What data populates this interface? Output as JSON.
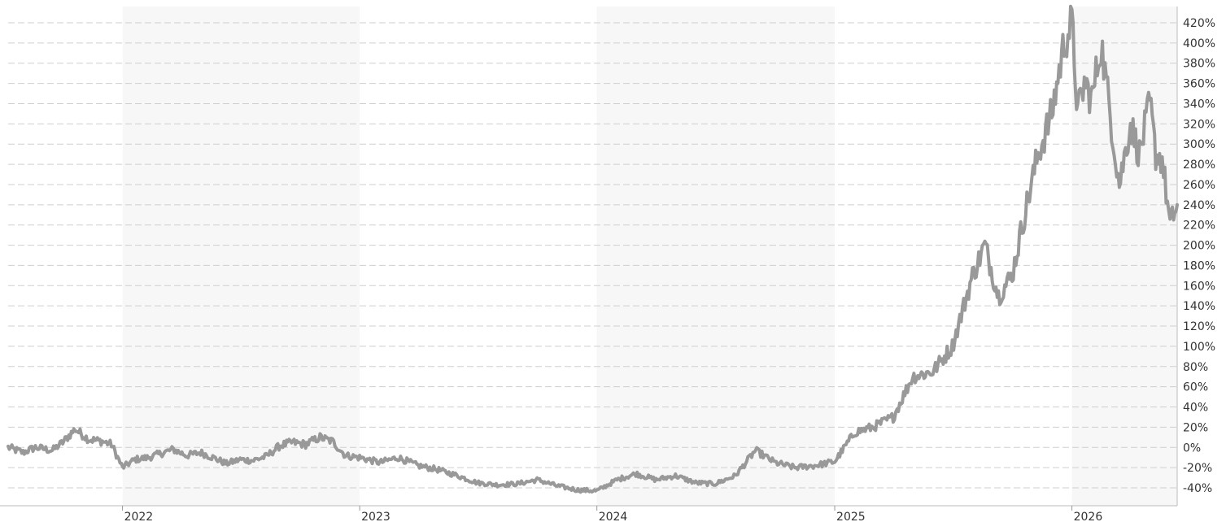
{
  "chart_data": {
    "type": "line",
    "title": "",
    "xlabel": "",
    "ylabel": "",
    "x_tick_labels": [
      "2022",
      "2023",
      "2024",
      "2025",
      "2026"
    ],
    "y_tick_labels": [
      "-40%",
      "-20%",
      "0%",
      "20%",
      "40%",
      "60%",
      "80%",
      "100%",
      "120%",
      "140%",
      "160%",
      "180%",
      "200%",
      "220%",
      "240%",
      "260%",
      "280%",
      "300%",
      "320%",
      "340%",
      "360%",
      "380%",
      "400%",
      "420%"
    ],
    "ylim": [
      -40,
      420
    ],
    "xlim": [
      "2021-07-09",
      "2026-06-12"
    ],
    "grid": true,
    "legend": "none",
    "line_color": "#999999",
    "series": [
      {
        "values": [
          [
            "2021-07-09",
            0
          ],
          [
            "2021-08-01",
            -5
          ],
          [
            "2021-08-20",
            0
          ],
          [
            "2021-09-15",
            -3
          ],
          [
            "2021-10-01",
            5
          ],
          [
            "2021-10-20",
            18
          ],
          [
            "2021-11-10",
            8
          ],
          [
            "2021-12-01",
            6
          ],
          [
            "2021-12-15",
            3
          ],
          [
            "2022-01-01",
            -20
          ],
          [
            "2022-01-20",
            -12
          ],
          [
            "2022-02-10",
            -10
          ],
          [
            "2022-03-01",
            -6
          ],
          [
            "2022-03-20",
            -2
          ],
          [
            "2022-04-10",
            -8
          ],
          [
            "2022-05-01",
            -5
          ],
          [
            "2022-05-20",
            -10
          ],
          [
            "2022-06-10",
            -16
          ],
          [
            "2022-07-01",
            -12
          ],
          [
            "2022-07-20",
            -13
          ],
          [
            "2022-08-10",
            -9
          ],
          [
            "2022-09-01",
            2
          ],
          [
            "2022-09-20",
            5
          ],
          [
            "2022-10-10",
            3
          ],
          [
            "2022-11-01",
            10
          ],
          [
            "2022-11-20",
            6
          ],
          [
            "2022-12-10",
            -8
          ],
          [
            "2023-01-01",
            -10
          ],
          [
            "2023-02-01",
            -15
          ],
          [
            "2023-03-01",
            -10
          ],
          [
            "2023-04-01",
            -18
          ],
          [
            "2023-05-01",
            -22
          ],
          [
            "2023-06-01",
            -28
          ],
          [
            "2023-07-01",
            -35
          ],
          [
            "2023-08-01",
            -37
          ],
          [
            "2023-09-01",
            -36
          ],
          [
            "2023-10-01",
            -32
          ],
          [
            "2023-11-01",
            -38
          ],
          [
            "2023-12-01",
            -42
          ],
          [
            "2024-01-01",
            -43
          ],
          [
            "2024-02-01",
            -32
          ],
          [
            "2024-03-01",
            -26
          ],
          [
            "2024-04-01",
            -32
          ],
          [
            "2024-05-01",
            -28
          ],
          [
            "2024-06-01",
            -35
          ],
          [
            "2024-07-01",
            -36
          ],
          [
            "2024-08-01",
            -28
          ],
          [
            "2024-09-01",
            -3
          ],
          [
            "2024-10-01",
            -15
          ],
          [
            "2024-11-01",
            -20
          ],
          [
            "2024-12-01",
            -18
          ],
          [
            "2025-01-01",
            -14
          ],
          [
            "2025-02-01",
            15
          ],
          [
            "2025-03-01",
            20
          ],
          [
            "2025-04-01",
            30
          ],
          [
            "2025-05-01",
            70
          ],
          [
            "2025-06-01",
            75
          ],
          [
            "2025-07-01",
            100
          ],
          [
            "2025-08-01",
            170
          ],
          [
            "2025-08-20",
            200
          ],
          [
            "2025-09-10",
            150
          ],
          [
            "2025-10-01",
            170
          ],
          [
            "2025-10-20",
            230
          ],
          [
            "2025-11-10",
            290
          ],
          [
            "2025-12-01",
            330
          ],
          [
            "2025-12-20",
            400
          ],
          [
            "2026-01-01",
            420
          ],
          [
            "2026-01-10",
            330
          ],
          [
            "2026-01-20",
            360
          ],
          [
            "2026-02-01",
            345
          ],
          [
            "2026-02-15",
            400
          ],
          [
            "2026-03-01",
            330
          ],
          [
            "2026-03-15",
            260
          ],
          [
            "2026-04-01",
            320
          ],
          [
            "2026-04-15",
            290
          ],
          [
            "2026-05-01",
            340
          ],
          [
            "2026-05-10",
            290
          ],
          [
            "2026-05-20",
            285
          ],
          [
            "2026-06-01",
            220
          ],
          [
            "2026-06-12",
            240
          ]
        ]
      }
    ]
  }
}
